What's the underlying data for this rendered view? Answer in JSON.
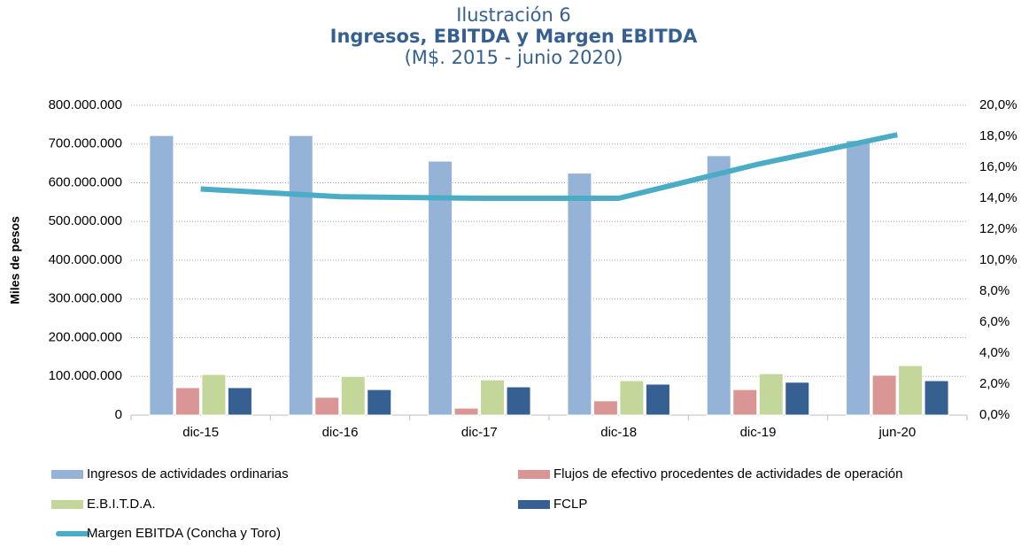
{
  "chart_data": {
    "type": "bar",
    "title": "Ilustración 6",
    "subtitle": "Ingresos, EBITDA y Margen EBITDA",
    "note": "(M$. 2015 - junio 2020)",
    "ylabel": "Miles de pesos",
    "categories": [
      "dic-15",
      "dic-16",
      "dic-17",
      "dic-18",
      "dic-19",
      "jun-20"
    ],
    "series": [
      {
        "name": "Ingresos de actividades ordinarias",
        "color": "#95b3d7",
        "values": [
          722000000,
          722000000,
          656000000,
          625000000,
          670000000,
          709000000
        ]
      },
      {
        "name": "Flujos de efectivo  procedentes de actividades de operación",
        "color": "#da9694",
        "values": [
          71000000,
          46000000,
          18000000,
          37000000,
          66000000,
          103000000
        ]
      },
      {
        "name": "E.B.I.T.D.A.",
        "color": "#c4d79b",
        "values": [
          105000000,
          100000000,
          91000000,
          89000000,
          107000000,
          128000000
        ]
      },
      {
        "name": "FCLP",
        "color": "#366092",
        "values": [
          71000000,
          66000000,
          73000000,
          80000000,
          85000000,
          89000000
        ]
      },
      {
        "name": "Margen EBITDA (Concha y Toro)",
        "color": "#4bacc6",
        "type": "line",
        "axis": "y2",
        "values": [
          14.6,
          14.1,
          14.0,
          14.0,
          16.2,
          18.1
        ]
      }
    ],
    "ylim": [
      0,
      800000000
    ],
    "yticks": [
      0,
      {
        "value": 100000000,
        "label": "100.000.000"
      },
      {
        "value": 200000000,
        "label": "200.000.000"
      },
      {
        "value": 300000000,
        "label": "300.000.000"
      },
      {
        "value": 400000000,
        "label": "400.000.000"
      },
      {
        "value": 500000000,
        "label": "500.000.000"
      },
      {
        "value": 600000000,
        "label": "600.000.000"
      },
      {
        "value": 700000000,
        "label": "700.000.000"
      },
      {
        "value": 800000000,
        "label": "800.000.000"
      }
    ],
    "y2lim": [
      0,
      20
    ],
    "y2ticks": [
      {
        "value": 0,
        "label": "0,0%"
      },
      {
        "value": 2,
        "label": "2,0%"
      },
      {
        "value": 4,
        "label": "4,0%"
      },
      {
        "value": 6,
        "label": "6,0%"
      },
      {
        "value": 8,
        "label": "8,0%"
      },
      {
        "value": 10,
        "label": "10,0%"
      },
      {
        "value": 12,
        "label": "12,0%"
      },
      {
        "value": 14,
        "label": "14,0%"
      },
      {
        "value": 16,
        "label": "16,0%"
      },
      {
        "value": 18,
        "label": "18,0%"
      },
      {
        "value": 20,
        "label": "20,0%"
      }
    ],
    "grid": true,
    "legend": "bottom"
  }
}
